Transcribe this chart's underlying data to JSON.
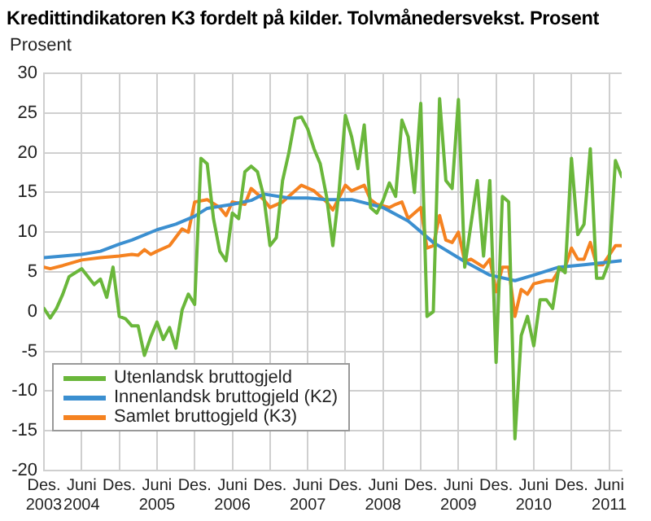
{
  "chart_data": {
    "type": "line",
    "title": "Kredittindikatoren K3 fordelt på kilder. Tolvmånedersvekst. Prosent",
    "ylabel": "Prosent",
    "x": [
      "2003-12",
      "2004-01",
      "2004-02",
      "2004-03",
      "2004-04",
      "2004-05",
      "2004-06",
      "2004-07",
      "2004-08",
      "2004-09",
      "2004-10",
      "2004-11",
      "2004-12",
      "2005-01",
      "2005-02",
      "2005-03",
      "2005-04",
      "2005-05",
      "2005-06",
      "2005-07",
      "2005-08",
      "2005-09",
      "2005-10",
      "2005-11",
      "2005-12",
      "2006-01",
      "2006-02",
      "2006-03",
      "2006-04",
      "2006-05",
      "2006-06",
      "2006-07",
      "2006-08",
      "2006-09",
      "2006-10",
      "2006-11",
      "2006-12",
      "2007-01",
      "2007-02",
      "2007-03",
      "2007-04",
      "2007-05",
      "2007-06",
      "2007-07",
      "2007-08",
      "2007-09",
      "2007-10",
      "2007-11",
      "2007-12",
      "2008-01",
      "2008-02",
      "2008-03",
      "2008-04",
      "2008-05",
      "2008-06",
      "2008-07",
      "2008-08",
      "2008-09",
      "2008-10",
      "2008-11",
      "2008-12",
      "2009-01",
      "2009-02",
      "2009-03",
      "2009-04",
      "2009-05",
      "2009-06",
      "2009-07",
      "2009-08",
      "2009-09",
      "2009-10",
      "2009-11",
      "2009-12",
      "2010-01",
      "2010-02",
      "2010-03",
      "2010-04",
      "2010-05",
      "2010-06",
      "2010-07",
      "2010-08",
      "2010-09",
      "2010-10",
      "2010-11",
      "2010-12",
      "2011-01",
      "2011-02",
      "2011-03",
      "2011-04",
      "2011-05",
      "2011-06",
      "2011-07",
      "2011-08"
    ],
    "series": [
      {
        "name": "Utenlandsk bruttogjeld",
        "color": "#6ab73b",
        "values": [
          0.4,
          -0.8,
          0.4,
          2.2,
          4.4,
          4.9,
          5.4,
          4.4,
          3.4,
          4.1,
          1.8,
          5.6,
          -0.6,
          -0.9,
          -1.8,
          -1.8,
          -5.5,
          -3.2,
          -1.3,
          -3.5,
          -2,
          -4.6,
          0.2,
          2.2,
          0.9,
          19.3,
          18.6,
          11.7,
          7.6,
          6.4,
          12.4,
          11.7,
          17.6,
          18.3,
          17.6,
          14.5,
          8.3,
          9.3,
          16.5,
          20,
          24.3,
          24.5,
          23,
          20.5,
          18.6,
          14.5,
          8.3,
          15.2,
          24.7,
          22,
          18,
          23.5,
          13.1,
          12.4,
          14,
          16.2,
          14.5,
          24.1,
          22,
          15,
          26.2,
          -0.6,
          0,
          26.8,
          16.5,
          15.5,
          26.7,
          5.6,
          11,
          16.5,
          7,
          16.5,
          -6.4,
          14.5,
          13.8,
          -16,
          -3,
          -0.6,
          -4.3,
          1.5,
          1.5,
          0.4,
          5.6,
          4.9,
          19.3,
          9.7,
          11,
          20.5,
          4.2,
          4.2,
          6.3,
          19,
          17
        ]
      },
      {
        "name": "Innenlandsk bruttogjeld (K2)",
        "color": "#3b8fd0",
        "x": [
          "2003-12",
          "2004-06",
          "2004-09",
          "2004-12",
          "2005-02",
          "2005-06",
          "2005-09",
          "2005-12",
          "2006-02",
          "2006-06",
          "2006-09",
          "2006-11",
          "2007-03",
          "2007-06",
          "2007-09",
          "2008-01",
          "2008-06",
          "2008-10",
          "2009-02",
          "2009-07",
          "2009-11",
          "2010-03",
          "2010-06",
          "2010-10",
          "2011-02",
          "2011-08"
        ],
        "values": [
          6.8,
          7.2,
          7.6,
          8.5,
          9,
          10.3,
          11,
          12,
          13,
          13.5,
          14,
          14.8,
          14.3,
          14.3,
          14.1,
          14.1,
          13.1,
          11.4,
          8.7,
          6.3,
          4.6,
          3.9,
          4.6,
          5.6,
          5.9,
          6.4
        ]
      },
      {
        "name": "Samlet bruttogjeld (K3)",
        "color": "#f58220",
        "x": [
          "2003-12",
          "2004-01",
          "2004-03",
          "2004-06",
          "2004-09",
          "2004-12",
          "2005-02",
          "2005-03",
          "2005-04",
          "2005-05",
          "2005-06",
          "2005-08",
          "2005-10",
          "2005-11",
          "2005-12",
          "2006-02",
          "2006-04",
          "2006-05",
          "2006-06",
          "2006-08",
          "2006-09",
          "2006-11",
          "2006-12",
          "2007-02",
          "2007-05",
          "2007-07",
          "2007-09",
          "2007-10",
          "2007-12",
          "2008-01",
          "2008-03",
          "2008-04",
          "2008-05",
          "2008-07",
          "2008-08",
          "2008-09",
          "2008-10",
          "2008-12",
          "2009-01",
          "2009-02",
          "2009-03",
          "2009-04",
          "2009-05",
          "2009-06",
          "2009-07",
          "2009-08",
          "2009-10",
          "2009-11",
          "2009-12",
          "2010-01",
          "2010-02",
          "2010-03",
          "2010-04",
          "2010-05",
          "2010-06",
          "2010-08",
          "2010-09",
          "2010-10",
          "2010-11",
          "2010-12",
          "2011-01",
          "2011-02",
          "2011-03",
          "2011-04",
          "2011-05",
          "2011-07",
          "2011-08"
        ],
        "values": [
          5.6,
          5.4,
          5.8,
          6.5,
          6.8,
          7,
          7.2,
          7.1,
          7.8,
          7.2,
          7.6,
          8.3,
          10.4,
          10,
          13.8,
          14.1,
          13.1,
          12.1,
          13.8,
          13.5,
          15.5,
          14.1,
          13.1,
          13.8,
          15.9,
          15.2,
          13.8,
          12.8,
          15.9,
          15.2,
          15.9,
          14.1,
          13.5,
          13.1,
          13.5,
          13.8,
          11.7,
          13.1,
          8,
          8.3,
          12.1,
          9,
          8.7,
          10,
          6.3,
          6.6,
          5.6,
          6.6,
          2.5,
          5.6,
          5.6,
          -0.6,
          2.8,
          2.2,
          3.5,
          3.9,
          3.9,
          5.2,
          5.6,
          8,
          6.6,
          6.6,
          8.7,
          5.9,
          5.9,
          8.3,
          8.3
        ]
      }
    ],
    "xlim": [
      "2003-12",
      "2011-08"
    ],
    "xticks": [
      {
        "value": "2003-12",
        "label": "Des.\n2003"
      },
      {
        "value": "2004-06",
        "label": "Juni\n2004"
      },
      {
        "value": "2004-12",
        "label": "Des."
      },
      {
        "value": "2005-06",
        "label": "Juni\n2005"
      },
      {
        "value": "2005-12",
        "label": "Des."
      },
      {
        "value": "2006-06",
        "label": "Juni\n2006"
      },
      {
        "value": "2006-12",
        "label": "Des."
      },
      {
        "value": "2007-06",
        "label": "Juni\n2007"
      },
      {
        "value": "2007-12",
        "label": "Des."
      },
      {
        "value": "2008-06",
        "label": "Juni\n2008"
      },
      {
        "value": "2008-12",
        "label": "Des."
      },
      {
        "value": "2009-06",
        "label": "Juni\n2009"
      },
      {
        "value": "2009-12",
        "label": "Des."
      },
      {
        "value": "2010-06",
        "label": "Juni\n2010"
      },
      {
        "value": "2010-12",
        "label": "Des."
      },
      {
        "value": "2011-06",
        "label": "Juni\n2011"
      }
    ],
    "ylim": [
      -20,
      30
    ],
    "yticks": [
      -20,
      -15,
      -10,
      -5,
      0,
      5,
      10,
      15,
      20,
      25,
      30
    ],
    "grid": true,
    "legend": "bottom left"
  }
}
